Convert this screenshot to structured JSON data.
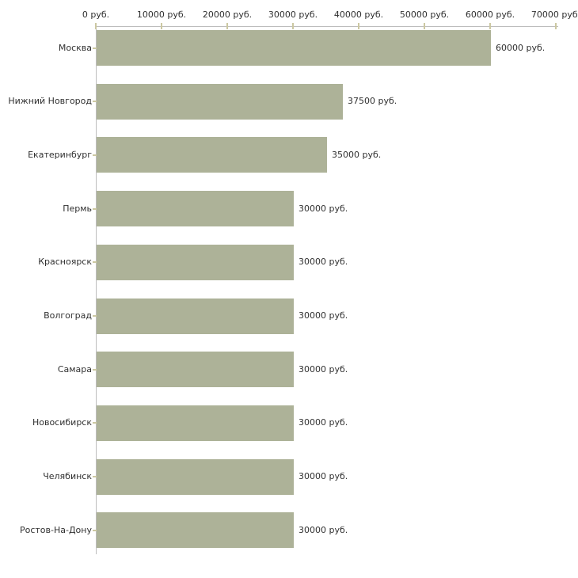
{
  "chart_data": {
    "type": "bar",
    "orientation": "horizontal",
    "title": "",
    "unit": "руб.",
    "categories": [
      "Москва",
      "Нижний Новгород",
      "Екатеринбург",
      "Пермь",
      "Красноярск",
      "Волгоград",
      "Самара",
      "Новосибирск",
      "Челябинск",
      "Ростов-На-Дону"
    ],
    "values": [
      60000,
      37500,
      35000,
      30000,
      30000,
      30000,
      30000,
      30000,
      30000,
      30000
    ],
    "value_labels": [
      "60000 руб.",
      "37500 руб.",
      "35000 руб.",
      "30000 руб.",
      "30000 руб.",
      "30000 руб.",
      "30000 руб.",
      "30000 руб.",
      "30000 руб.",
      "30000 руб."
    ],
    "x_ticks": [
      0,
      10000,
      20000,
      30000,
      40000,
      50000,
      60000,
      70000
    ],
    "x_tick_labels": [
      "0 руб.",
      "10000 руб.",
      "20000 руб.",
      "30000 руб.",
      "40000 руб.",
      "50000 руб.",
      "60000 руб.",
      "70000 руб."
    ],
    "xlim": [
      0,
      70000
    ],
    "grid": false,
    "legend": false,
    "axis_position": "top",
    "colors": {
      "bar": "#adb298",
      "axis_line": "#bdbdbd",
      "tick": "#ccc8a2",
      "text": "#303030",
      "background": "#ffffff"
    }
  }
}
